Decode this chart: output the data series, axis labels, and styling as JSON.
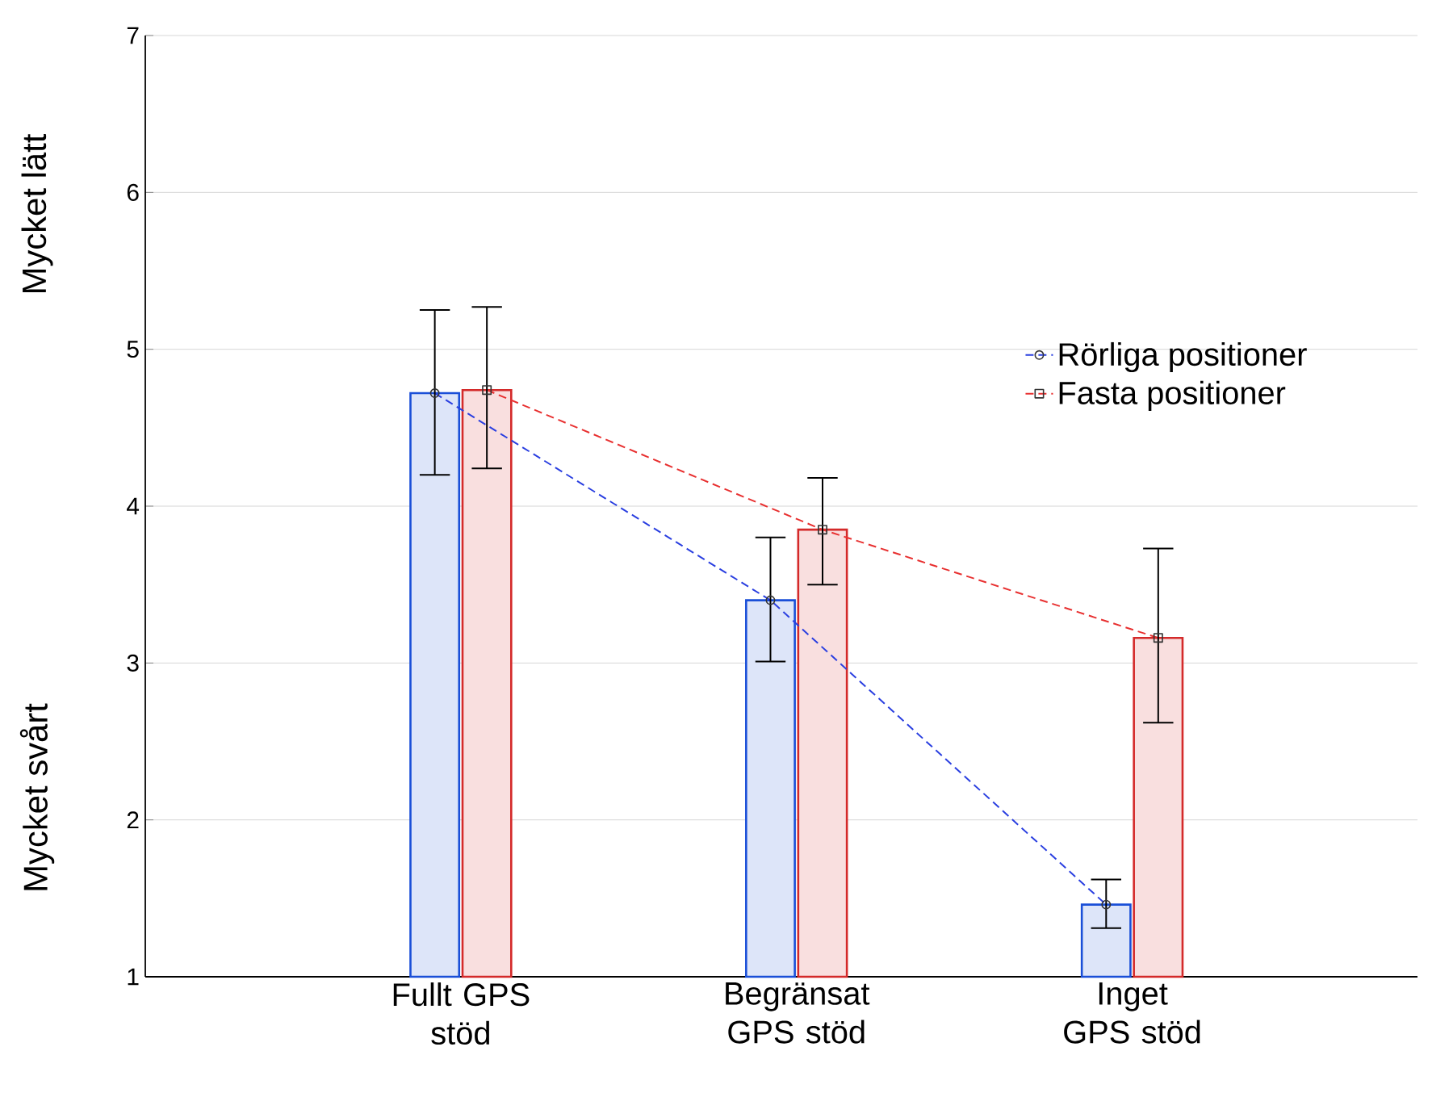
{
  "chart_data": {
    "type": "bar",
    "categories": [
      "Fullt GPS stöd",
      "Begränsat GPS stöd",
      "Inget GPS stöd"
    ],
    "series": [
      {
        "color": "#1a4fd8",
        "values": [
          4.72,
          3.4,
          1.46
        ],
        "errors": [
          [
            4.2,
            5.25
          ],
          [
            3.01,
            3.8
          ],
          [
            1.31,
            1.62
          ]
        ]
      },
      {
        "color": "#d42a2a",
        "values": [
          4.74,
          3.85,
          3.16
        ],
        "errors": [
          [
            4.24,
            5.27
          ],
          [
            3.5,
            4.18
          ],
          [
            2.62,
            3.73
          ]
        ]
      },
      {
        "type": "line",
        "name": "Rörliga positioner",
        "color": "#2a3fe0",
        "values": [
          4.72,
          3.4,
          1.46
        ],
        "marker": "circle",
        "line_style": "dashed"
      },
      {
        "type": "line",
        "name": "Fasta positioner",
        "color": "#e83030",
        "values": [
          4.74,
          3.85,
          3.16
        ],
        "marker": "square",
        "line_style": "dashed"
      }
    ],
    "ylim": [
      1,
      7
    ],
    "yticks": [
      1,
      2,
      3,
      4,
      5,
      6,
      7
    ],
    "grid": "y",
    "legend": "right",
    "annotations": [
      "Mycket lätt",
      "Mycket svårt"
    ]
  }
}
